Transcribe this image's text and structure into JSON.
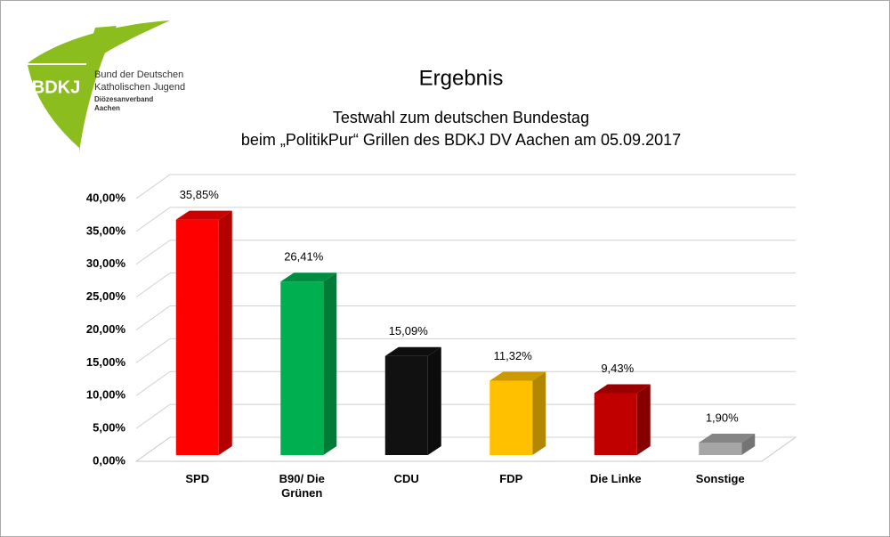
{
  "logo": {
    "abbreviation": "BDKJ",
    "lines": [
      "Bund der Deutschen",
      "Katholischen Jugend",
      "Diözesanverband",
      "Aachen"
    ]
  },
  "chart_data": {
    "type": "bar3d",
    "title": "Ergebnis",
    "subtitle": [
      "Testwahl zum deutschen Bundestag",
      "beim „PolitikPur“ Grillen des BDKJ DV Aachen am 05.09.2017"
    ],
    "categories": [
      "SPD",
      "B90/ Die Grünen",
      "CDU",
      "FDP",
      "Die Linke",
      "Sonstige"
    ],
    "values": [
      35.85,
      26.41,
      15.09,
      11.32,
      9.43,
      1.9
    ],
    "value_labels": [
      "35,85%",
      "26,41%",
      "15,09%",
      "11,32%",
      "9,43%",
      "1,90%"
    ],
    "colors": [
      "#ff0000",
      "#00b050",
      "#111111",
      "#ffc000",
      "#c00000",
      "#a6a6a6"
    ],
    "ylim": [
      0,
      40
    ],
    "yticks": [
      {
        "value": 0,
        "label": "0,00%"
      },
      {
        "value": 5,
        "label": "5,00%"
      },
      {
        "value": 10,
        "label": "10,00%"
      },
      {
        "value": 15,
        "label": "15,00%"
      },
      {
        "value": 20,
        "label": "20,00%"
      },
      {
        "value": 25,
        "label": "25,00%"
      },
      {
        "value": 30,
        "label": "30,00%"
      },
      {
        "value": 35,
        "label": "35,00%"
      },
      {
        "value": 40,
        "label": "40,00%"
      }
    ],
    "grid": true
  }
}
